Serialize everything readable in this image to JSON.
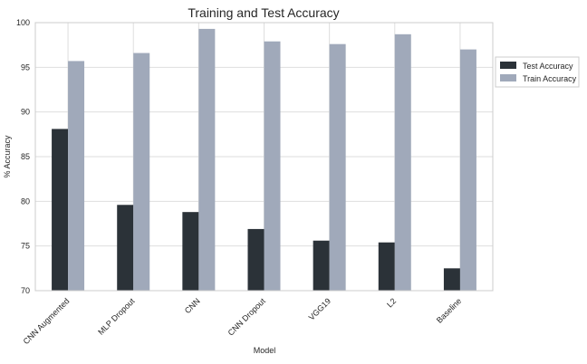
{
  "chart_data": {
    "type": "bar",
    "title": "Training and Test Accuracy",
    "xlabel": "Model",
    "ylabel": "% Accuracy",
    "categories": [
      "CNN Augmented",
      "MLP Dropout",
      "CNN",
      "CNN Dropout",
      "VGG19",
      "L2",
      "Baseline"
    ],
    "series": [
      {
        "name": "Test Accuracy",
        "color": "#2b3238",
        "values": [
          88.1,
          79.6,
          78.8,
          76.9,
          75.6,
          75.4,
          72.5
        ]
      },
      {
        "name": "Train Accuracy",
        "color": "#a0a9ba",
        "values": [
          95.7,
          96.6,
          99.3,
          97.9,
          97.6,
          98.7,
          97.0
        ]
      }
    ],
    "ylim": [
      70,
      100
    ],
    "yticks": [
      70,
      75,
      80,
      85,
      90,
      95,
      100
    ],
    "grid": true,
    "legend_position": "right-outside-top"
  }
}
